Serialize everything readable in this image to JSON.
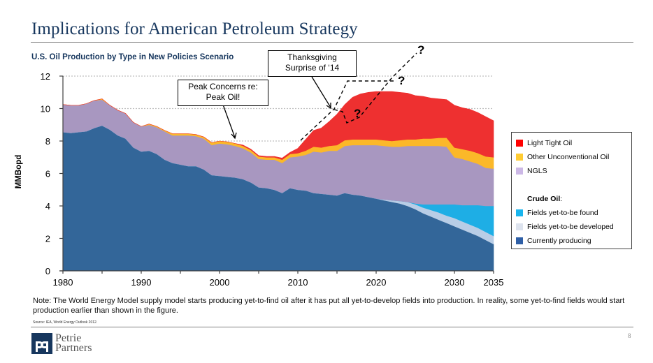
{
  "header": {
    "title": "Implications for American Petroleum Strategy"
  },
  "chart_data": {
    "type": "area",
    "stacked": true,
    "title": "U.S. Oil Production by Type in New Policies Scenario",
    "xlabel": "",
    "ylabel": "MMBopd",
    "xlim": [
      1980,
      2035
    ],
    "ylim": [
      0,
      12
    ],
    "xticks": [
      1980,
      1990,
      2000,
      2010,
      2020,
      2030,
      2035
    ],
    "xtick_labels": [
      "1980",
      "1990",
      "2000",
      "2010",
      "2020",
      "2030",
      "2035"
    ],
    "yticks": [
      0,
      2,
      4,
      6,
      8,
      10,
      12
    ],
    "ytick_labels": [
      "0",
      "2",
      "4",
      "6",
      "8",
      "10",
      "12"
    ],
    "grid": "horizontal dotted",
    "legend_position": "right",
    "x": [
      1980,
      1981,
      1982,
      1983,
      1984,
      1985,
      1986,
      1987,
      1988,
      1989,
      1990,
      1991,
      1992,
      1993,
      1994,
      1995,
      1996,
      1997,
      1998,
      1999,
      2000,
      2001,
      2002,
      2003,
      2004,
      2005,
      2006,
      2007,
      2008,
      2009,
      2010,
      2011,
      2012,
      2013,
      2014,
      2015,
      2016,
      2017,
      2018,
      2019,
      2020,
      2021,
      2022,
      2023,
      2024,
      2025,
      2026,
      2027,
      2028,
      2029,
      2030,
      2031,
      2032,
      2033,
      2034,
      2035
    ],
    "series": [
      {
        "name": "Currently producing",
        "color": "#336699",
        "values": [
          8.55,
          8.5,
          8.55,
          8.6,
          8.8,
          8.95,
          8.7,
          8.35,
          8.15,
          7.6,
          7.35,
          7.4,
          7.2,
          6.85,
          6.65,
          6.55,
          6.45,
          6.45,
          6.25,
          5.9,
          5.85,
          5.8,
          5.75,
          5.65,
          5.45,
          5.15,
          5.1,
          5.0,
          4.8,
          5.1,
          5.0,
          4.95,
          4.8,
          4.75,
          4.7,
          4.65,
          4.8,
          4.7,
          4.65,
          4.55,
          4.45,
          4.35,
          4.25,
          4.15,
          4.0,
          3.8,
          3.55,
          3.35,
          3.15,
          2.95,
          2.75,
          2.55,
          2.35,
          2.15,
          1.9,
          1.65
        ]
      },
      {
        "name": "Fields yet-to-be developed",
        "color": "#b8cde6",
        "values": [
          0,
          0,
          0,
          0,
          0,
          0,
          0,
          0,
          0,
          0,
          0,
          0,
          0,
          0,
          0,
          0,
          0,
          0,
          0,
          0,
          0,
          0,
          0,
          0,
          0,
          0,
          0,
          0,
          0,
          0,
          0,
          0,
          0,
          0,
          0,
          0,
          0,
          0,
          0,
          0,
          0,
          0.05,
          0.1,
          0.15,
          0.25,
          0.3,
          0.35,
          0.4,
          0.45,
          0.45,
          0.5,
          0.5,
          0.5,
          0.5,
          0.5,
          0.5
        ]
      },
      {
        "name": "Fields yet-to-be found",
        "color": "#1eaee5",
        "values": [
          0,
          0,
          0,
          0,
          0,
          0,
          0,
          0,
          0,
          0,
          0,
          0,
          0,
          0,
          0,
          0,
          0,
          0,
          0,
          0,
          0,
          0,
          0,
          0,
          0,
          0,
          0,
          0,
          0,
          0,
          0,
          0,
          0,
          0,
          0,
          0,
          0,
          0,
          0,
          0,
          0,
          0,
          0,
          0,
          0,
          0.05,
          0.2,
          0.35,
          0.5,
          0.7,
          0.85,
          1.0,
          1.2,
          1.4,
          1.6,
          1.85
        ]
      },
      {
        "name": "NGLS",
        "color": "#a897c0",
        "values": [
          1.7,
          1.7,
          1.65,
          1.7,
          1.7,
          1.6,
          1.5,
          1.55,
          1.55,
          1.55,
          1.55,
          1.6,
          1.65,
          1.75,
          1.7,
          1.8,
          1.9,
          1.85,
          1.9,
          1.85,
          2.0,
          2.0,
          1.95,
          1.9,
          1.85,
          1.75,
          1.75,
          1.85,
          1.85,
          1.9,
          2.05,
          2.2,
          2.55,
          2.55,
          2.7,
          2.75,
          2.9,
          3.05,
          3.1,
          3.2,
          3.3,
          3.3,
          3.3,
          3.35,
          3.45,
          3.55,
          3.6,
          3.6,
          3.6,
          3.55,
          2.9,
          2.85,
          2.7,
          2.55,
          2.35,
          2.3
        ]
      },
      {
        "name": "Other Unconventional Oil",
        "color": "#fbb829",
        "values": [
          0,
          0,
          0,
          0,
          0,
          0.05,
          0,
          0,
          0,
          0,
          0,
          0.05,
          0.05,
          0.05,
          0.1,
          0.1,
          0.1,
          0.1,
          0.1,
          0.15,
          0.15,
          0.15,
          0.15,
          0.15,
          0.15,
          0.15,
          0.15,
          0.15,
          0.2,
          0.2,
          0.2,
          0.25,
          0.3,
          0.3,
          0.3,
          0.35,
          0.35,
          0.35,
          0.35,
          0.35,
          0.35,
          0.35,
          0.35,
          0.4,
          0.4,
          0.4,
          0.45,
          0.45,
          0.5,
          0.55,
          0.6,
          0.6,
          0.65,
          0.65,
          0.7,
          0.7
        ]
      },
      {
        "name": "Light Tight Oil",
        "color": "#ee3030",
        "values": [
          0,
          0,
          0,
          0,
          0,
          0,
          0,
          0,
          0,
          0,
          0,
          0,
          0,
          0,
          0,
          0,
          0,
          0,
          0,
          0,
          0,
          0,
          0,
          0.05,
          0.05,
          0.05,
          0.05,
          0.05,
          0.1,
          0.1,
          0.3,
          0.7,
          1.0,
          1.2,
          1.5,
          1.9,
          2.2,
          2.6,
          2.8,
          2.9,
          2.95,
          3.0,
          3.05,
          2.95,
          2.85,
          2.7,
          2.6,
          2.5,
          2.4,
          2.35,
          2.6,
          2.55,
          2.55,
          2.5,
          2.45,
          2.25
        ]
      }
    ],
    "annotations": [
      {
        "text": "Peak Concerns re:\nPeak Oil!",
        "points_to_year": 2002,
        "points_to_value": 8.0
      },
      {
        "text": "Thanksgiving\nSurprise of ‘14",
        "points_to_year": 2014,
        "points_to_value": 10.0
      },
      {
        "text": "?",
        "type": "dashed-scenario-mark"
      },
      {
        "text": "?",
        "type": "dashed-scenario-mark"
      },
      {
        "text": "?",
        "type": "dashed-scenario-mark"
      }
    ]
  },
  "callouts": {
    "peak_line1": "Peak Concerns re:",
    "peak_line2": "Peak Oil!",
    "tg_line1": "Thanksgiving",
    "tg_line2": "Surprise of ‘14",
    "q": "?"
  },
  "legend": {
    "items_top": [
      {
        "label": "Light Tight Oil",
        "color": "#ff0000"
      },
      {
        "label": "Other Unconventional Oil",
        "color": "#ffcc33"
      },
      {
        "label": "NGLS",
        "color": "#ccb8e6"
      }
    ],
    "crude_heading": "Crude Oil",
    "crude_colon": ":",
    "items_bottom": [
      {
        "label": "Fields yet-to-be found",
        "color": "#19b5ee"
      },
      {
        "label": "Fields yet-to-be developed",
        "color": "#dde3ee"
      },
      {
        "label": "Currently producing",
        "color": "#2f5fa6"
      }
    ]
  },
  "footer": {
    "note": "Note: The World Energy Model supply model starts producing yet-to-find oil after it has put all yet-to-develop fields into production.  In reality, some yet-to-find fields would start production earlier than shown in the figure.",
    "source": "Source: IEA, World Energy Outlook 2012.",
    "logo_line1": "Petrie",
    "logo_line2": "Partners",
    "page_number": "8"
  }
}
